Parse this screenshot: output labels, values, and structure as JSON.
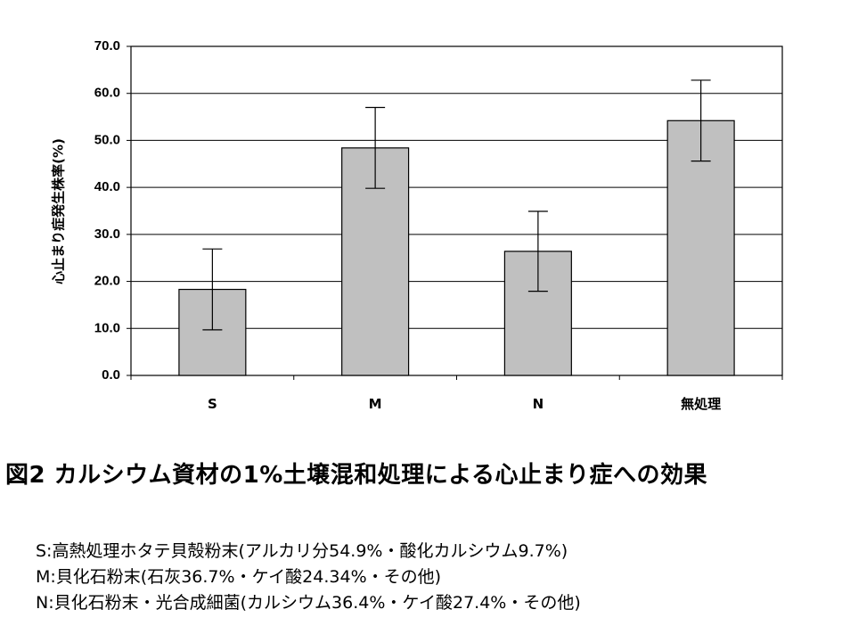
{
  "chart_data": {
    "type": "bar",
    "categories": [
      "S",
      "M",
      "N",
      "無処理"
    ],
    "values": [
      18.3,
      48.4,
      26.4,
      54.2
    ],
    "error": [
      8.6,
      8.6,
      8.5,
      8.6
    ],
    "ylabel": "心止まり症発生株率(%)",
    "ylim": [
      0,
      70
    ],
    "yticks": [
      "0.0",
      "10.0",
      "20.0",
      "30.0",
      "40.0",
      "50.0",
      "60.0",
      "70.0"
    ],
    "grid": true,
    "bar_color": "#c0c0c0"
  },
  "caption": "図2 カルシウム資材の1%土壌混和処理による心止まり症への効果",
  "notes": [
    "S:高熱処理ホタテ貝殻粉末(アルカリ分54.9%・酸化カルシウム9.7%)",
    "M:貝化石粉末(石灰36.7%・ケイ酸24.34%・その他)",
    "N:貝化石粉末・光合成細菌(カルシウム36.4%・ケイ酸27.4%・その他)"
  ]
}
